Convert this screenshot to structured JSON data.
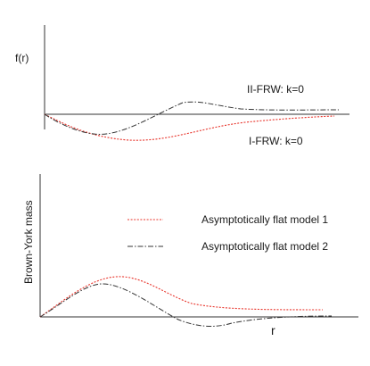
{
  "top_panel": {
    "y_axis_label": "f(r)",
    "curve_labels": {
      "ii_frw": "II-FRW: k=0",
      "i_frw": "I-FRW: k=0"
    },
    "colors": {
      "ii_frw": "#333333",
      "i_frw": "#e8342b"
    }
  },
  "bottom_panel": {
    "y_axis_label": "Brown-York mass",
    "x_axis_label": "r",
    "legend": [
      {
        "label": "Asymptotically flat model 1",
        "style": "dotted",
        "color": "#e8342b"
      },
      {
        "label": "Asymptotically flat model 2",
        "style": "dash-dot",
        "color": "#333333"
      }
    ]
  }
}
